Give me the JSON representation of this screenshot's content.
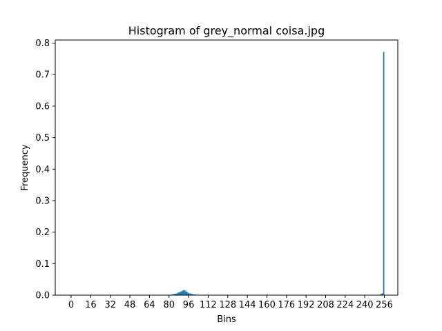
{
  "chart_data": {
    "type": "bar",
    "title": "Histogram of grey_normal coisa.jpg",
    "xlabel": "Bins",
    "ylabel": "Frequency",
    "xlim": [
      -13,
      267
    ],
    "ylim": [
      0,
      0.81
    ],
    "xticks": [
      0,
      16,
      32,
      48,
      64,
      80,
      96,
      112,
      128,
      144,
      160,
      176,
      192,
      208,
      224,
      240,
      256
    ],
    "yticks": [
      0.0,
      0.1,
      0.2,
      0.3,
      0.4,
      0.5,
      0.6,
      0.7,
      0.8
    ],
    "ytick_labels": [
      "0.0",
      "0.1",
      "0.2",
      "0.3",
      "0.4",
      "0.5",
      "0.6",
      "0.7",
      "0.8"
    ],
    "grid": false,
    "bar_color": "#1f77b4",
    "bins": [
      {
        "x": 80,
        "value": 0.001
      },
      {
        "x": 81,
        "value": 0.001
      },
      {
        "x": 82,
        "value": 0.002
      },
      {
        "x": 83,
        "value": 0.003
      },
      {
        "x": 84,
        "value": 0.004
      },
      {
        "x": 85,
        "value": 0.005
      },
      {
        "x": 86,
        "value": 0.006
      },
      {
        "x": 87,
        "value": 0.008
      },
      {
        "x": 88,
        "value": 0.009
      },
      {
        "x": 89,
        "value": 0.011
      },
      {
        "x": 90,
        "value": 0.013
      },
      {
        "x": 91,
        "value": 0.015
      },
      {
        "x": 92,
        "value": 0.016
      },
      {
        "x": 93,
        "value": 0.014
      },
      {
        "x": 94,
        "value": 0.011
      },
      {
        "x": 95,
        "value": 0.008
      },
      {
        "x": 96,
        "value": 0.006
      },
      {
        "x": 97,
        "value": 0.005
      },
      {
        "x": 98,
        "value": 0.004
      },
      {
        "x": 99,
        "value": 0.003
      },
      {
        "x": 100,
        "value": 0.002
      },
      {
        "x": 101,
        "value": 0.002
      },
      {
        "x": 102,
        "value": 0.001
      },
      {
        "x": 103,
        "value": 0.001
      },
      {
        "x": 104,
        "value": 0.001
      },
      {
        "x": 250,
        "value": 0.001
      },
      {
        "x": 251,
        "value": 0.001
      },
      {
        "x": 252,
        "value": 0.002
      },
      {
        "x": 253,
        "value": 0.004
      },
      {
        "x": 254,
        "value": 0.006
      },
      {
        "x": 255,
        "value": 0.772
      }
    ]
  }
}
